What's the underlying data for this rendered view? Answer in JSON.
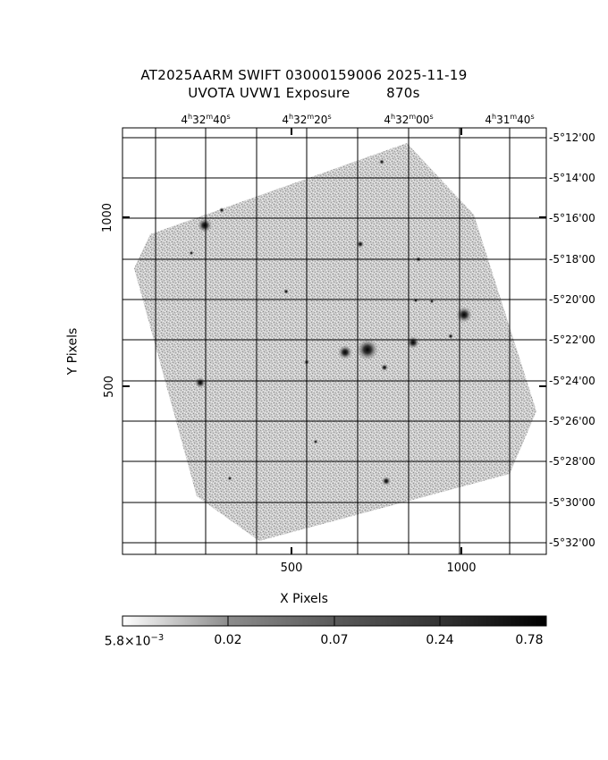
{
  "title_line1": "AT2025AARM SWIFT 03000159006 2025-11-19",
  "title_line2": "UVOTA UVW1 Exposure        870s",
  "x_axis_label": "X Pixels",
  "y_axis_label": "Y Pixels",
  "x_ticks": [
    "500",
    "1000"
  ],
  "y_ticks": [
    "1000",
    "500"
  ],
  "ra_ticks": [
    {
      "h": "4",
      "m": "32",
      "s": "40"
    },
    {
      "h": "4",
      "m": "32",
      "s": "20"
    },
    {
      "h": "4",
      "m": "32",
      "s": "00"
    },
    {
      "h": "4",
      "m": "31",
      "s": "40"
    }
  ],
  "dec_ticks": [
    "-5°12'00",
    "-5°14'00",
    "-5°16'00",
    "-5°18'00",
    "-5°20'00",
    "-5°22'00",
    "-5°24'00",
    "-5°26'00",
    "-5°28'00",
    "-5°30'00",
    "-5°32'00"
  ],
  "colorbar": {
    "label_min_base": "5.8×10",
    "label_min_exp": "−3",
    "labels": [
      "0.02",
      "0.07",
      "0.24",
      "0.78"
    ],
    "scale": "log"
  }
}
